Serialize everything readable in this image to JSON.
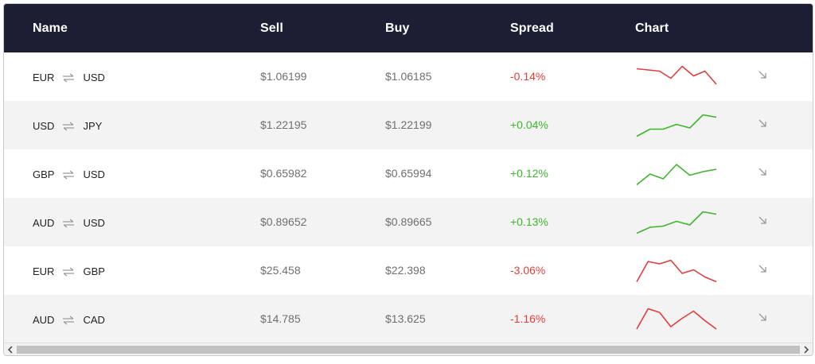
{
  "header": {
    "name": "Name",
    "sell": "Sell",
    "buy": "Buy",
    "spread": "Spread",
    "chart": "Chart"
  },
  "colors": {
    "up": "#3cb72a",
    "down": "#e53b3b",
    "header_bg": "#1c1f33"
  },
  "rows": [
    {
      "base": "EUR",
      "quote": "USD",
      "sell": "$1.06199",
      "buy": "$1.06185",
      "spread": "-0.14%",
      "direction": "down",
      "spark": [
        0.85,
        0.8,
        0.75,
        0.45,
        0.95,
        0.55,
        0.75,
        0.2
      ]
    },
    {
      "base": "USD",
      "quote": "JPY",
      "sell": "$1.22195",
      "buy": "$1.22199",
      "spread": "+0.04%",
      "direction": "up",
      "spark": [
        0.05,
        0.35,
        0.35,
        0.55,
        0.4,
        0.95,
        0.85
      ]
    },
    {
      "base": "GBP",
      "quote": "USD",
      "sell": "$0.65982",
      "buy": "$0.65994",
      "spread": "+0.12%",
      "direction": "up",
      "spark": [
        0.05,
        0.5,
        0.3,
        0.9,
        0.45,
        0.6,
        0.7
      ]
    },
    {
      "base": "AUD",
      "quote": "USD",
      "sell": "$0.89652",
      "buy": "$0.89665",
      "spread": "+0.13%",
      "direction": "up",
      "spark": [
        0.05,
        0.3,
        0.35,
        0.55,
        0.4,
        0.95,
        0.85
      ]
    },
    {
      "base": "EUR",
      "quote": "GBP",
      "sell": "$25.458",
      "buy": "$22.398",
      "spread": "-3.06%",
      "direction": "down",
      "spark": [
        0.05,
        0.9,
        0.8,
        0.95,
        0.4,
        0.55,
        0.25,
        0.05
      ]
    },
    {
      "base": "AUD",
      "quote": "CAD",
      "sell": "$14.785",
      "buy": "$13.625",
      "spread": "-1.16%",
      "direction": "down",
      "spark": [
        0.1,
        0.95,
        0.8,
        0.2,
        0.55,
        0.85,
        0.45,
        0.1
      ]
    }
  ],
  "icons": {
    "swap": "swap-arrows-icon",
    "trend": "arrow-down-right-icon"
  }
}
